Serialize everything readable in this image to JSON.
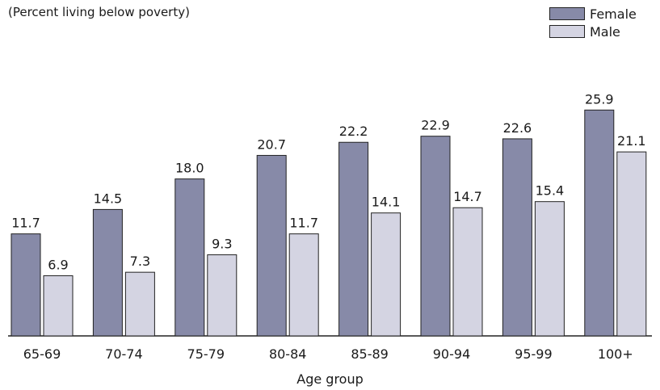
{
  "chart_data": {
    "type": "bar",
    "subtitle": "(Percent living below poverty)",
    "xlabel": "Age group",
    "ylabel": "",
    "ylim": [
      0,
      30
    ],
    "grid": false,
    "legend_position": "top-right",
    "categories": [
      "65-69",
      "70-74",
      "75-79",
      "80-84",
      "85-89",
      "90-94",
      "95-99",
      "100+"
    ],
    "series": [
      {
        "name": "Female",
        "color": "#878aa8",
        "values": [
          11.7,
          14.5,
          18.0,
          20.7,
          22.2,
          22.9,
          22.6,
          25.9
        ]
      },
      {
        "name": "Male",
        "color": "#d4d4e2",
        "values": [
          6.9,
          7.3,
          9.3,
          11.7,
          14.1,
          14.7,
          15.4,
          21.1
        ]
      }
    ]
  }
}
